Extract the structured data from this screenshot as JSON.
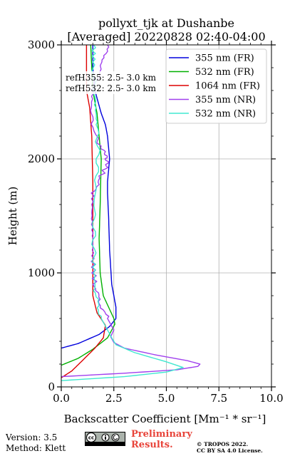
{
  "chart_data": {
    "type": "line",
    "title": [
      "pollyxt_tjk at Dushanbe",
      "[Averaged] 20220828 02:40-04:00"
    ],
    "xlabel": "Backscatter Coefficient [Mm⁻¹ * sr⁻¹]",
    "ylabel": "Height (m)",
    "xlim": [
      0,
      10
    ],
    "ylim": [
      0,
      3000
    ],
    "x_ticks": [
      "0.0",
      "2.5",
      "5.0",
      "7.5",
      "10.0"
    ],
    "y_ticks": [
      "0",
      "1000",
      "2000",
      "3000"
    ],
    "grid": true,
    "legend_position": "top-right",
    "annotations": [
      "refH355:  2.5- 3.0 km",
      "refH532:  2.5- 3.0 km"
    ],
    "series": [
      {
        "name": "355 nm (FR)",
        "color": "#0000dd",
        "x": [
          0.0,
          0.8,
          1.8,
          2.3,
          2.6,
          2.6,
          2.4,
          2.3,
          2.25,
          2.2,
          2.2,
          2.25,
          2.3,
          2.2,
          2.1,
          1.9,
          1.75,
          1.6,
          1.5,
          1.5
        ],
        "y": [
          340,
          380,
          460,
          530,
          600,
          700,
          900,
          1200,
          1500,
          1700,
          1800,
          1900,
          2000,
          2200,
          2300,
          2400,
          2500,
          2600,
          2800,
          3000
        ]
      },
      {
        "name": "532 nm (FR)",
        "color": "#00b000",
        "x": [
          0.0,
          0.8,
          1.5,
          2.2,
          2.55,
          2.5,
          2.0,
          1.85,
          1.8,
          1.85,
          1.9,
          1.8,
          1.7,
          1.6,
          1.5,
          1.45,
          1.4
        ],
        "y": [
          190,
          250,
          330,
          430,
          550,
          600,
          800,
          1000,
          1300,
          1600,
          2000,
          2200,
          2400,
          2500,
          2600,
          2800,
          3000
        ]
      },
      {
        "name": "1064 nm (FR)",
        "color": "#dd0000",
        "x": [
          0.0,
          0.5,
          1.0,
          1.6,
          2.0,
          2.1,
          1.7,
          1.5,
          1.5,
          1.5,
          1.45,
          1.35,
          1.2,
          1.2,
          1.2
        ],
        "y": [
          80,
          140,
          230,
          340,
          430,
          540,
          650,
          800,
          1200,
          1800,
          2200,
          2450,
          2600,
          2800,
          3000
        ]
      },
      {
        "name": "355 nm (NR)",
        "color": "#a040ee",
        "x": [
          0.0,
          3.0,
          5.5,
          6.5,
          6.6,
          6.0,
          4.5,
          3.0,
          2.5,
          2.35,
          2.5,
          2.2,
          1.8,
          1.6,
          1.5,
          1.5,
          1.45,
          1.5,
          1.9,
          2.2,
          2.1,
          1.7,
          1.4,
          1.5,
          2.0,
          2.2
        ],
        "y": [
          90,
          120,
          150,
          180,
          200,
          230,
          280,
          340,
          390,
          440,
          500,
          600,
          750,
          900,
          1100,
          1300,
          1500,
          1700,
          1850,
          1950,
          2050,
          2150,
          2400,
          2600,
          2850,
          3000
        ]
      },
      {
        "name": "532 nm (NR)",
        "color": "#40e8d0",
        "x": [
          0.0,
          3.0,
          5.0,
          5.8,
          5.0,
          3.5,
          2.6,
          2.4,
          2.2,
          1.9,
          1.7,
          1.6,
          1.55,
          1.55,
          1.6,
          1.75,
          1.7,
          1.6,
          1.55,
          1.55
        ],
        "y": [
          55,
          90,
          130,
          170,
          220,
          300,
          370,
          430,
          500,
          600,
          750,
          900,
          1100,
          1400,
          1700,
          2000,
          2300,
          2500,
          2800,
          3000
        ]
      }
    ]
  },
  "footer": {
    "version": "Version: 3.5",
    "method": "Method: Klett",
    "preliminary": [
      "Preliminary",
      "Results."
    ],
    "copyright": [
      "© TROPOS 2022.",
      "CC BY SA 4.0 License."
    ]
  }
}
